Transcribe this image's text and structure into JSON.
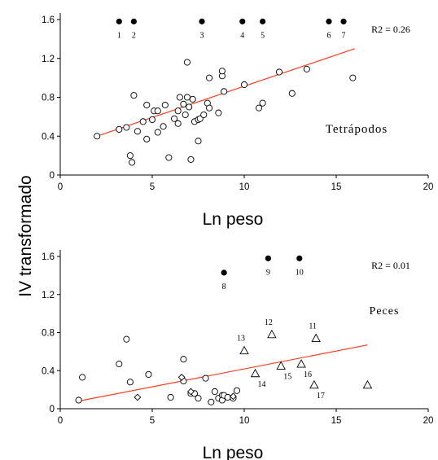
{
  "shared_ylabel": "IV transformado",
  "chart_data": [
    {
      "type": "scatter",
      "panel": "top",
      "xlabel": "Ln peso",
      "xlim": [
        0,
        20
      ],
      "ylim": [
        0,
        1.6
      ],
      "xticks": [
        "0",
        "5",
        "10",
        "15",
        "20"
      ],
      "yticks": [
        "0",
        "0.4",
        "0.8",
        "1.2",
        "1.6"
      ],
      "r2_text": "R2 = 0.26",
      "group_label": "Tetrápodos",
      "regression_line": {
        "x": [
          2.0,
          16.0
        ],
        "y": [
          0.4,
          1.3
        ],
        "color": "#ff3b1f"
      },
      "open_circles": [
        [
          2.0,
          0.4
        ],
        [
          3.2,
          0.47
        ],
        [
          3.6,
          0.49
        ],
        [
          3.8,
          0.2
        ],
        [
          3.9,
          0.13
        ],
        [
          4.0,
          0.82
        ],
        [
          4.2,
          0.45
        ],
        [
          4.5,
          0.55
        ],
        [
          4.7,
          0.37
        ],
        [
          4.7,
          0.72
        ],
        [
          5.0,
          0.57
        ],
        [
          5.1,
          0.66
        ],
        [
          5.3,
          0.66
        ],
        [
          5.3,
          0.44
        ],
        [
          5.6,
          0.5
        ],
        [
          5.7,
          0.72
        ],
        [
          5.9,
          0.18
        ],
        [
          6.2,
          0.58
        ],
        [
          6.4,
          0.66
        ],
        [
          6.4,
          0.53
        ],
        [
          6.5,
          0.8
        ],
        [
          6.7,
          0.73
        ],
        [
          6.8,
          0.62
        ],
        [
          6.9,
          0.8
        ],
        [
          6.9,
          1.16
        ],
        [
          7.0,
          0.7
        ],
        [
          7.1,
          0.16
        ],
        [
          7.2,
          0.78
        ],
        [
          7.3,
          0.55
        ],
        [
          7.5,
          0.35
        ],
        [
          7.5,
          0.57
        ],
        [
          7.6,
          0.58
        ],
        [
          7.8,
          0.62
        ],
        [
          8.0,
          0.74
        ],
        [
          8.1,
          1.0
        ],
        [
          8.1,
          0.69
        ],
        [
          8.6,
          0.64
        ],
        [
          8.8,
          1.02
        ],
        [
          8.8,
          1.07
        ],
        [
          8.9,
          0.86
        ],
        [
          10.0,
          0.93
        ],
        [
          10.8,
          0.69
        ],
        [
          11.0,
          0.74
        ],
        [
          11.9,
          1.06
        ],
        [
          12.6,
          0.84
        ],
        [
          13.4,
          1.09
        ],
        [
          15.9,
          1.0
        ]
      ],
      "reference_points": [
        {
          "label": "1",
          "x": 3.2,
          "y": 1.58
        },
        {
          "label": "2",
          "x": 4.0,
          "y": 1.58
        },
        {
          "label": "3",
          "x": 7.7,
          "y": 1.58
        },
        {
          "label": "4",
          "x": 9.9,
          "y": 1.58
        },
        {
          "label": "5",
          "x": 11.0,
          "y": 1.58
        },
        {
          "label": "6",
          "x": 14.6,
          "y": 1.58
        },
        {
          "label": "7",
          "x": 15.4,
          "y": 1.58
        }
      ]
    },
    {
      "type": "scatter",
      "panel": "bottom",
      "xlabel": "Ln peso",
      "xlim": [
        0,
        20
      ],
      "ylim": [
        0,
        1.6
      ],
      "xticks": [
        "0",
        "5",
        "10",
        "15",
        "20"
      ],
      "yticks": [
        "0",
        "0.4",
        "0.8",
        "1.2",
        "1.6"
      ],
      "r2_text": "R2 = 0.01",
      "group_label": "Peces",
      "regression_line": {
        "x": [
          1.0,
          16.7
        ],
        "y": [
          0.08,
          0.67
        ],
        "color": "#ff3b1f"
      },
      "open_circles": [
        [
          1.0,
          0.09
        ],
        [
          1.2,
          0.33
        ],
        [
          3.2,
          0.47
        ],
        [
          3.6,
          0.73
        ],
        [
          3.8,
          0.28
        ],
        [
          4.8,
          0.36
        ],
        [
          6.0,
          0.12
        ],
        [
          6.7,
          0.52
        ],
        [
          6.7,
          0.29
        ],
        [
          7.1,
          0.16
        ],
        [
          7.3,
          0.16
        ],
        [
          7.5,
          0.11
        ],
        [
          7.9,
          0.32
        ],
        [
          8.2,
          0.07
        ],
        [
          8.4,
          0.18
        ],
        [
          8.6,
          0.11
        ],
        [
          8.8,
          0.14
        ],
        [
          8.8,
          0.09
        ],
        [
          8.9,
          0.14
        ],
        [
          9.1,
          0.12
        ],
        [
          9.4,
          0.11
        ],
        [
          9.6,
          0.19
        ]
      ],
      "open_diamonds": [
        [
          4.2,
          0.12
        ],
        [
          6.6,
          0.33
        ],
        [
          7.1,
          0.18
        ],
        [
          9.4,
          0.13
        ]
      ],
      "open_triangles": [
        {
          "label": "11",
          "x": 13.9,
          "y": 0.74
        },
        {
          "label": "12",
          "x": 11.5,
          "y": 0.78
        },
        {
          "label": "13",
          "x": 10.0,
          "y": 0.61
        },
        {
          "label": "14",
          "x": 10.6,
          "y": 0.37
        },
        {
          "label": "15",
          "x": 12.0,
          "y": 0.45
        },
        {
          "label": "16",
          "x": 13.1,
          "y": 0.47
        },
        {
          "label": "17",
          "x": 13.8,
          "y": 0.25
        },
        {
          "label": "",
          "x": 16.7,
          "y": 0.25
        }
      ],
      "reference_points": [
        {
          "label": "8",
          "x": 8.9,
          "y": 1.43
        },
        {
          "label": "9",
          "x": 11.3,
          "y": 1.58
        },
        {
          "label": "10",
          "x": 13.0,
          "y": 1.58
        }
      ]
    }
  ]
}
